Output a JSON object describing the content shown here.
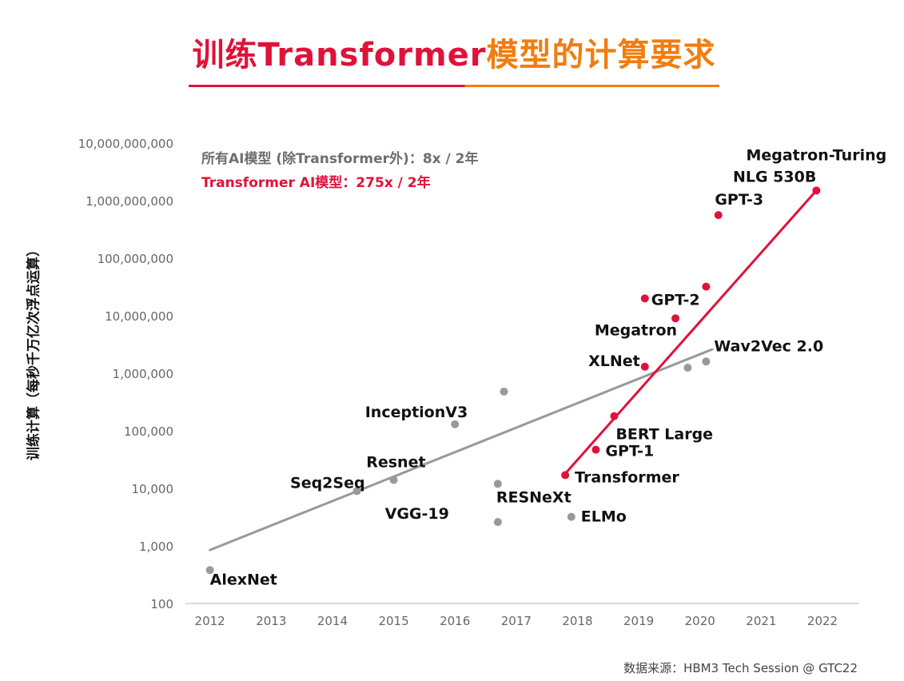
{
  "title": {
    "part1": "训练Transformer",
    "part2": "模型的计算要求"
  },
  "legend": {
    "all_models": "所有AI模型 (除Transformer外)：8x / 2年",
    "transformer": "Transformer AI模型：275x / 2年"
  },
  "source": "数据来源：HBM3 Tech Session @ GTC22",
  "colors": {
    "red": "#e0123a",
    "orange": "#f07d0f",
    "gray": "#999999",
    "axis": "#cfcfcf"
  },
  "chart_data": {
    "type": "scatter",
    "ylabel": "训练计算（每秒千万亿次浮点运算）",
    "xlabel": "",
    "xlim": [
      2011.6,
      2022.6
    ],
    "ylim": [
      100,
      10000000000
    ],
    "yscale": "log",
    "x_ticks": [
      "2012",
      "2013",
      "2014",
      "2015",
      "2016",
      "2017",
      "2018",
      "2019",
      "2020",
      "2021",
      "2022"
    ],
    "y_ticks": [
      {
        "value": 100,
        "label": "100"
      },
      {
        "value": 1000,
        "label": "1,000"
      },
      {
        "value": 10000,
        "label": "10,000"
      },
      {
        "value": 100000,
        "label": "100,000"
      },
      {
        "value": 1000000,
        "label": "1,000,000"
      },
      {
        "value": 10000000,
        "label": "10,000,000"
      },
      {
        "value": 100000000,
        "label": "100,000,000"
      },
      {
        "value": 1000000000,
        "label": "1,000,000,000"
      },
      {
        "value": 10000000000,
        "label": "10,000,000,000"
      }
    ],
    "series": [
      {
        "name": "所有AI模型 (除Transformer外)",
        "color": "#999999",
        "points": [
          {
            "x": 2012.0,
            "y": 380,
            "label": "AlexNet"
          },
          {
            "x": 2014.4,
            "y": 9000,
            "label": "Seq2Seq"
          },
          {
            "x": 2015.0,
            "y": 14000,
            "label": "Resnet"
          },
          {
            "x": 2016.0,
            "y": 130000,
            "label": "InceptionV3"
          },
          {
            "x": 2016.7,
            "y": 12000,
            "label": "RESNeXt"
          },
          {
            "x": 2016.7,
            "y": 2600,
            "label": "VGG-19"
          },
          {
            "x": 2016.8,
            "y": 480000,
            "label": ""
          },
          {
            "x": 2017.9,
            "y": 3200,
            "label": "ELMo"
          },
          {
            "x": 2019.8,
            "y": 1250000,
            "label": ""
          },
          {
            "x": 2020.1,
            "y": 1600000,
            "label": "Wav2Vec 2.0"
          }
        ],
        "trend": [
          {
            "x": 2012.0,
            "y": 850
          },
          {
            "x": 2020.2,
            "y": 2600000
          }
        ]
      },
      {
        "name": "Transformer AI模型",
        "color": "#e0123a",
        "points": [
          {
            "x": 2017.8,
            "y": 17000,
            "label": "Transformer"
          },
          {
            "x": 2018.3,
            "y": 47000,
            "label": "GPT-1"
          },
          {
            "x": 2018.6,
            "y": 180000,
            "label": "BERT Large"
          },
          {
            "x": 2019.1,
            "y": 1300000,
            "label": "XLNet"
          },
          {
            "x": 2019.6,
            "y": 9000000,
            "label": "Megatron"
          },
          {
            "x": 2019.1,
            "y": 20000000,
            "label": "GPT-2"
          },
          {
            "x": 2020.1,
            "y": 32000000,
            "label": ""
          },
          {
            "x": 2020.3,
            "y": 560000000,
            "label": "GPT-3"
          },
          {
            "x": 2021.9,
            "y": 1500000000,
            "label": "Megatron-Turing NLG 530B"
          }
        ],
        "trend": [
          {
            "x": 2017.8,
            "y": 18000
          },
          {
            "x": 2021.9,
            "y": 1500000000
          }
        ]
      }
    ]
  }
}
